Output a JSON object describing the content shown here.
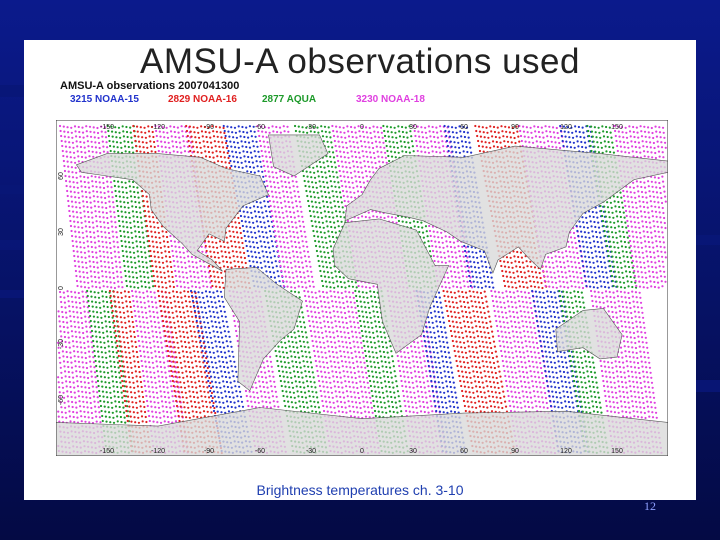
{
  "slide": {
    "title": "AMSU-A observations used",
    "caption": "Brightness temperatures ch. 3-10",
    "page_number": "12"
  },
  "map": {
    "header": "AMSU-A observations  2007041300",
    "legend": [
      {
        "label": "3215 NOAA-15",
        "color": "#2233cc"
      },
      {
        "label": "2829 NOAA-16",
        "color": "#e02020"
      },
      {
        "label": "2877 AQUA",
        "color": "#1d9a2a"
      },
      {
        "label": "3230 NOAA-18",
        "color": "#e040e0"
      }
    ],
    "lon_ticks_top": [
      "-150",
      "-120",
      "-90",
      "-60",
      "-30",
      "0",
      "30",
      "60",
      "90",
      "120",
      "150"
    ],
    "lon_ticks_bottom": [
      "-150",
      "-120",
      "-90",
      "-60",
      "-30",
      "0",
      "30",
      "60",
      "90",
      "120",
      "150"
    ],
    "lat_ticks": [
      "60",
      "30",
      "0",
      "-30",
      "-60"
    ],
    "colors": {
      "noaa15": "#2233cc",
      "noaa16": "#e02020",
      "aqua": "#1d9a2a",
      "noaa18": "#e040e0",
      "land": "#d9d9d9"
    }
  }
}
